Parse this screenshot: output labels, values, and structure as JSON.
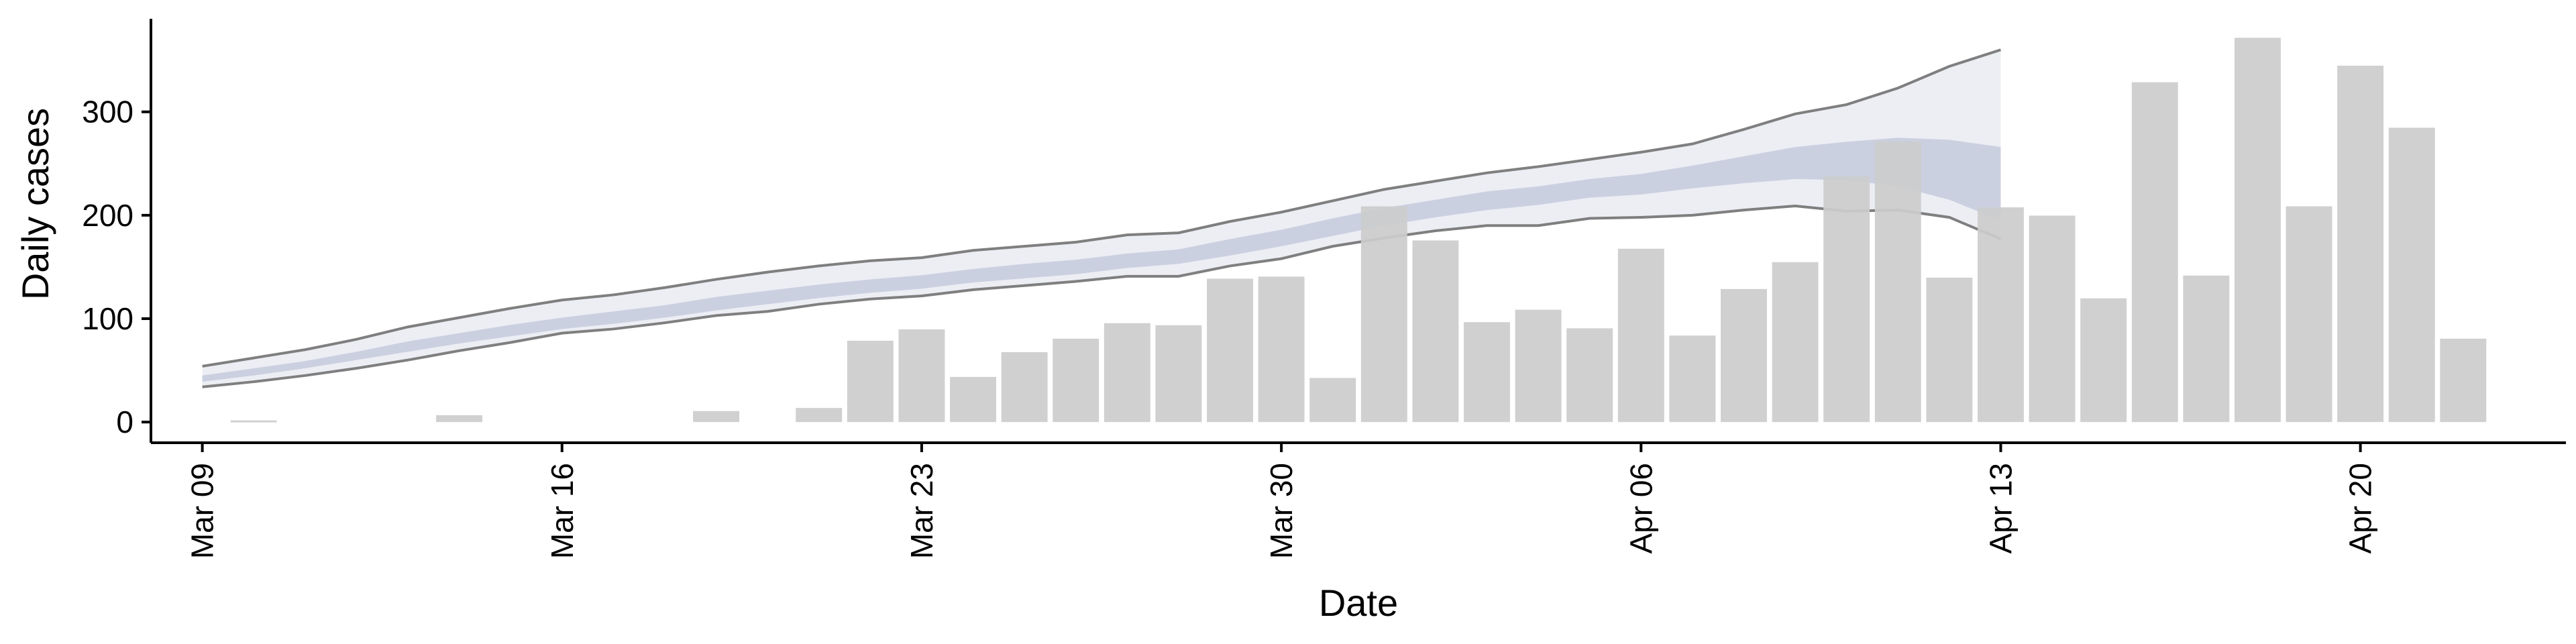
{
  "chart_data": {
    "type": "bar",
    "title": "",
    "xlabel": "Date",
    "ylabel": "Daily cases",
    "ylim": [
      -20,
      390
    ],
    "yticks": [
      0,
      100,
      200,
      300
    ],
    "xticks": [
      "Mar 09",
      "Mar 16",
      "Mar 23",
      "Mar 30",
      "Apr 06",
      "Apr 13",
      "Apr 20"
    ],
    "xtick_dates": [
      "2020-03-09",
      "2020-03-16",
      "2020-03-23",
      "2020-03-30",
      "2020-04-06",
      "2020-04-13",
      "2020-04-20"
    ],
    "xlim": [
      "2020-03-08",
      "2020-04-24"
    ],
    "grid": false,
    "legend": "none",
    "bar_color": "#cccccc",
    "band_outer_color": "#e6e8f0",
    "band_inner_color": "#c5cadd",
    "band_line_color": "#7f7f7f",
    "bars": {
      "dates": [
        "2020-03-10",
        "2020-03-14",
        "2020-03-19",
        "2020-03-21",
        "2020-03-22",
        "2020-03-23",
        "2020-03-24",
        "2020-03-25",
        "2020-03-26",
        "2020-03-27",
        "2020-03-28",
        "2020-03-29",
        "2020-03-30",
        "2020-03-31",
        "2020-04-01",
        "2020-04-02",
        "2020-04-03",
        "2020-04-04",
        "2020-04-05",
        "2020-04-06",
        "2020-04-07",
        "2020-04-08",
        "2020-04-09",
        "2020-04-10",
        "2020-04-11",
        "2020-04-12",
        "2020-04-13",
        "2020-04-14",
        "2020-04-15",
        "2020-04-16",
        "2020-04-17",
        "2020-04-18",
        "2020-04-19",
        "2020-04-20",
        "2020-04-21",
        "2020-04-22"
      ],
      "values": [
        1,
        6,
        10,
        13,
        78,
        89,
        43,
        67,
        80,
        95,
        93,
        138,
        140,
        42,
        208,
        175,
        96,
        108,
        90,
        167,
        83,
        128,
        154,
        237,
        271,
        139,
        207,
        199,
        119,
        328,
        141,
        371,
        208,
        344,
        284,
        80
      ]
    },
    "band": {
      "dates": [
        "2020-03-09",
        "2020-03-10",
        "2020-03-11",
        "2020-03-12",
        "2020-03-13",
        "2020-03-14",
        "2020-03-15",
        "2020-03-16",
        "2020-03-17",
        "2020-03-18",
        "2020-03-19",
        "2020-03-20",
        "2020-03-21",
        "2020-03-22",
        "2020-03-23",
        "2020-03-24",
        "2020-03-25",
        "2020-03-26",
        "2020-03-27",
        "2020-03-28",
        "2020-03-29",
        "2020-03-30",
        "2020-03-31",
        "2020-04-01",
        "2020-04-02",
        "2020-04-03",
        "2020-04-04",
        "2020-04-05",
        "2020-04-06",
        "2020-04-07",
        "2020-04-08",
        "2020-04-09",
        "2020-04-10",
        "2020-04-11",
        "2020-04-12",
        "2020-04-13"
      ],
      "upper_90": [
        54,
        62,
        70,
        80,
        92,
        101,
        110,
        118,
        123,
        130,
        138,
        145,
        151,
        156,
        159,
        166,
        170,
        174,
        181,
        183,
        194,
        203,
        214,
        225,
        233,
        241,
        247,
        254,
        261,
        269,
        283,
        298,
        307,
        323,
        344,
        360
      ],
      "upper_50": [
        45,
        52,
        59,
        68,
        78,
        86,
        94,
        101,
        107,
        113,
        121,
        127,
        133,
        138,
        142,
        148,
        153,
        157,
        163,
        167,
        177,
        186,
        197,
        207,
        215,
        223,
        228,
        235,
        240,
        248,
        257,
        266,
        271,
        275,
        273,
        266
      ],
      "median": [
        42,
        49,
        56,
        64,
        73,
        81,
        89,
        96,
        101,
        107,
        115,
        121,
        127,
        132,
        136,
        142,
        146,
        150,
        156,
        160,
        169,
        178,
        189,
        199,
        207,
        214,
        219,
        226,
        230,
        237,
        244,
        250,
        252,
        251,
        244,
        230
      ],
      "lower_50": [
        39,
        45,
        52,
        60,
        68,
        76,
        83,
        90,
        95,
        101,
        108,
        114,
        120,
        125,
        129,
        135,
        139,
        143,
        149,
        153,
        161,
        170,
        180,
        190,
        198,
        205,
        210,
        217,
        220,
        226,
        231,
        235,
        234,
        228,
        215,
        195
      ],
      "lower_90": [
        34,
        39,
        45,
        52,
        60,
        69,
        77,
        86,
        90,
        96,
        103,
        107,
        114,
        119,
        122,
        128,
        132,
        136,
        141,
        141,
        151,
        158,
        170,
        178,
        185,
        190,
        190,
        197,
        198,
        200,
        205,
        209,
        204,
        205,
        198,
        177
      ]
    }
  }
}
